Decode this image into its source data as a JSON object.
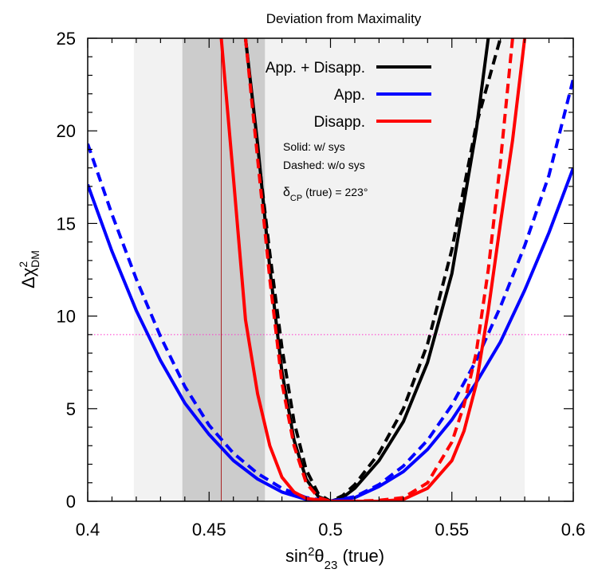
{
  "chart_data": {
    "type": "line",
    "title": "Deviation from Maximality",
    "xlabel": {
      "base": "sin",
      "sup": "2",
      "theta": "θ",
      "sub": "23",
      "suffix": " (true)"
    },
    "ylabel": {
      "delta": "Δχ",
      "sup": "2",
      "sub": "DM"
    },
    "xlim": [
      0.4,
      0.6
    ],
    "ylim": [
      0,
      25
    ],
    "x_ticks": [
      "0.4",
      "0.45",
      "0.5",
      "0.55",
      "0.6"
    ],
    "x_tick_values": [
      0.4,
      0.45,
      0.5,
      0.55,
      0.6
    ],
    "y_ticks": [
      "0",
      "5",
      "10",
      "15",
      "20",
      "25"
    ],
    "y_tick_values": [
      0,
      5,
      10,
      15,
      20,
      25
    ],
    "grid": false,
    "legend_position": "top-right",
    "legend": [
      {
        "label": "App. + Disapp.",
        "color": "#000000"
      },
      {
        "label": "App.",
        "color": "#0000ff"
      },
      {
        "label": "Disapp.",
        "color": "#ff0000"
      }
    ],
    "annotations": {
      "solid": "Solid: w/ sys",
      "dashed": "Dashed: w/o sys",
      "delta_prefix": "δ",
      "delta_sub": "CP",
      "delta_suffix": " (true) = 223°"
    },
    "bands": [
      {
        "x0": 0.419,
        "x1": 0.58,
        "color": "#f2f2f2"
      },
      {
        "x0": 0.439,
        "x1": 0.473,
        "color": "#cccccc"
      }
    ],
    "reference_lines": {
      "horizontal_y": 9,
      "horizontal_color": "#ff33cc",
      "vertical_x": 0.455,
      "vertical_color": "#aa2222"
    },
    "series": [
      {
        "name": "App. + Disapp.",
        "color": "#000000",
        "style": "solid",
        "points": [
          [
            0.465,
            25
          ],
          [
            0.47,
            19.3
          ],
          [
            0.475,
            12.6
          ],
          [
            0.48,
            7.0
          ],
          [
            0.485,
            3.3
          ],
          [
            0.49,
            1.2
          ],
          [
            0.495,
            0.25
          ],
          [
            0.5,
            0
          ],
          [
            0.505,
            0.2
          ],
          [
            0.51,
            0.7
          ],
          [
            0.52,
            2.2
          ],
          [
            0.53,
            4.3
          ],
          [
            0.54,
            7.5
          ],
          [
            0.55,
            12.3
          ],
          [
            0.56,
            20.0
          ],
          [
            0.565,
            25
          ]
        ]
      },
      {
        "name": "App. + Disapp.",
        "color": "#000000",
        "style": "dashed",
        "points": [
          [
            0.465,
            25
          ],
          [
            0.47,
            19.0
          ],
          [
            0.475,
            13.4
          ],
          [
            0.48,
            8.3
          ],
          [
            0.485,
            4.3
          ],
          [
            0.49,
            1.7
          ],
          [
            0.495,
            0.4
          ],
          [
            0.5,
            0
          ],
          [
            0.505,
            0.3
          ],
          [
            0.51,
            0.9
          ],
          [
            0.52,
            2.6
          ],
          [
            0.53,
            5.0
          ],
          [
            0.54,
            8.5
          ],
          [
            0.55,
            13.6
          ],
          [
            0.56,
            20.3
          ],
          [
            0.57,
            25
          ]
        ]
      },
      {
        "name": "App.",
        "color": "#0000ff",
        "style": "solid",
        "points": [
          [
            0.4,
            17.1
          ],
          [
            0.41,
            13.5
          ],
          [
            0.42,
            10.3
          ],
          [
            0.43,
            7.6
          ],
          [
            0.44,
            5.3
          ],
          [
            0.45,
            3.6
          ],
          [
            0.46,
            2.2
          ],
          [
            0.47,
            1.2
          ],
          [
            0.48,
            0.5
          ],
          [
            0.49,
            0.1
          ],
          [
            0.5,
            0
          ],
          [
            0.51,
            0.2
          ],
          [
            0.52,
            0.8
          ],
          [
            0.53,
            1.6
          ],
          [
            0.54,
            2.8
          ],
          [
            0.55,
            4.4
          ],
          [
            0.56,
            6.4
          ],
          [
            0.57,
            8.6
          ],
          [
            0.58,
            11.4
          ],
          [
            0.59,
            14.5
          ],
          [
            0.6,
            18.0
          ]
        ]
      },
      {
        "name": "App.",
        "color": "#0000ff",
        "style": "dashed",
        "points": [
          [
            0.4,
            19.3
          ],
          [
            0.41,
            15.5
          ],
          [
            0.42,
            12.0
          ],
          [
            0.43,
            8.9
          ],
          [
            0.44,
            6.2
          ],
          [
            0.45,
            4.1
          ],
          [
            0.46,
            2.6
          ],
          [
            0.47,
            1.5
          ],
          [
            0.48,
            0.7
          ],
          [
            0.49,
            0.2
          ],
          [
            0.5,
            0
          ],
          [
            0.51,
            0.25
          ],
          [
            0.52,
            0.9
          ],
          [
            0.53,
            1.9
          ],
          [
            0.54,
            3.3
          ],
          [
            0.55,
            5.2
          ],
          [
            0.56,
            7.6
          ],
          [
            0.57,
            10.5
          ],
          [
            0.58,
            13.8
          ],
          [
            0.59,
            17.6
          ],
          [
            0.6,
            22.8
          ]
        ]
      },
      {
        "name": "Disapp.",
        "color": "#ff0000",
        "style": "solid",
        "points": [
          [
            0.455,
            25
          ],
          [
            0.46,
            17.5
          ],
          [
            0.465,
            9.8
          ],
          [
            0.47,
            5.8
          ],
          [
            0.475,
            3.0
          ],
          [
            0.48,
            1.3
          ],
          [
            0.485,
            0.5
          ],
          [
            0.49,
            0.15
          ],
          [
            0.5,
            0
          ],
          [
            0.51,
            0
          ],
          [
            0.52,
            0
          ],
          [
            0.53,
            0.1
          ],
          [
            0.54,
            0.7
          ],
          [
            0.55,
            2.2
          ],
          [
            0.555,
            3.8
          ],
          [
            0.56,
            6.3
          ],
          [
            0.565,
            10.3
          ],
          [
            0.57,
            15.0
          ],
          [
            0.575,
            19.5
          ],
          [
            0.58,
            25
          ]
        ]
      },
      {
        "name": "Disapp.",
        "color": "#ff0000",
        "style": "dashed",
        "points": [
          [
            0.465,
            25
          ],
          [
            0.47,
            18.5
          ],
          [
            0.475,
            12.0
          ],
          [
            0.48,
            6.4
          ],
          [
            0.485,
            3.0
          ],
          [
            0.49,
            1.0
          ],
          [
            0.495,
            0.2
          ],
          [
            0.5,
            0
          ],
          [
            0.51,
            0
          ],
          [
            0.52,
            0.05
          ],
          [
            0.53,
            0.2
          ],
          [
            0.54,
            1.0
          ],
          [
            0.55,
            3.2
          ],
          [
            0.555,
            5.2
          ],
          [
            0.56,
            8.0
          ],
          [
            0.565,
            12.5
          ],
          [
            0.57,
            18.3
          ],
          [
            0.575,
            25
          ]
        ]
      }
    ]
  }
}
